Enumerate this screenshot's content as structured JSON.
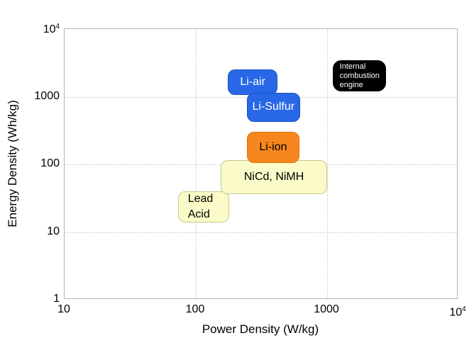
{
  "chart_data": {
    "type": "scatter",
    "subtype": "ragone-region-boxes",
    "title": "",
    "x_axis": {
      "label": "Power Density (W/kg)",
      "scale": "log",
      "range": [
        10,
        10000
      ],
      "ticks": [
        {
          "value": 10,
          "base": "10",
          "exp": ""
        },
        {
          "value": 100,
          "base": "100",
          "exp": ""
        },
        {
          "value": 1000,
          "base": "1000",
          "exp": ""
        },
        {
          "value": 10000,
          "base": "10",
          "exp": "4"
        }
      ]
    },
    "y_axis": {
      "label": "Energy Density (Wh/kg)",
      "scale": "log",
      "range": [
        1,
        10000
      ],
      "ticks": [
        {
          "value": 1,
          "base": "1",
          "exp": ""
        },
        {
          "value": 10,
          "base": "10",
          "exp": ""
        },
        {
          "value": 100,
          "base": "100",
          "exp": ""
        },
        {
          "value": 1000,
          "base": "1000",
          "exp": ""
        },
        {
          "value": 10000,
          "base": "10",
          "exp": "4"
        }
      ]
    },
    "grid": {
      "x_lines": [
        100,
        1000
      ],
      "y_lines": [
        10,
        100,
        1000
      ],
      "style": "dotted",
      "color": "#c9c9c9"
    },
    "regions": [
      {
        "name": "Lead Acid",
        "label_lines": [
          "Lead",
          "Acid"
        ],
        "x_range": [
          73,
          180
        ],
        "y_range": [
          14,
          40
        ],
        "fill": "#fbfbc9",
        "border": "#c6c68e",
        "text_color": "#000000",
        "text_align": "left",
        "font_size": 16,
        "line_height": 22,
        "pad_left": 13,
        "radius": 10,
        "z": 1
      },
      {
        "name": "NiCd, NiMH",
        "label_lines": [
          "NiCd, NiMH"
        ],
        "x_range": [
          155,
          1000
        ],
        "y_range": [
          36,
          115
        ],
        "fill": "#fbfbc9",
        "border": "#c6c68e",
        "text_color": "#000000",
        "text_align": "center",
        "font_size": 16,
        "line_height": 20,
        "pad_left": 0,
        "radius": 10,
        "z": 2
      },
      {
        "name": "Li-ion",
        "label_lines": [
          "Li-ion"
        ],
        "x_range": [
          245,
          615
        ],
        "y_range": [
          105,
          305
        ],
        "fill": "#f6861d",
        "border": "#df7110",
        "text_color": "#000000",
        "text_align": "center",
        "font_size": 16,
        "line_height": 20,
        "pad_left": 0,
        "radius": 10,
        "z": 3
      },
      {
        "name": "Li-air",
        "label_lines": [
          "Li-air"
        ],
        "x_range": [
          175,
          420
        ],
        "y_range": [
          1050,
          2500
        ],
        "fill": "#2868e6",
        "border": "#1d53c0",
        "text_color": "#ffffff",
        "text_align": "center",
        "font_size": 16,
        "line_height": 20,
        "pad_left": 0,
        "radius": 10,
        "z": 3
      },
      {
        "name": "Li-Sulfur",
        "label_lines": [
          "Li-Sulfur"
        ],
        "x_range": [
          245,
          620
        ],
        "y_range": [
          430,
          1150
        ],
        "fill": "#2868e6",
        "border": "#1d53c0",
        "text_color": "#ffffff",
        "text_align": "center",
        "font_size": 16,
        "line_height": 20,
        "pad_left": 0,
        "radius": 10,
        "z": 4
      },
      {
        "name": "Internal combustion engine",
        "label_lines": [
          "Internal",
          "combustion",
          "engine"
        ],
        "x_range": [
          1100,
          2800
        ],
        "y_range": [
          1200,
          3450
        ],
        "fill": "#000000",
        "border": "#000000",
        "text_color": "#ffffff",
        "text_align": "left",
        "font_size": 11,
        "line_height": 13,
        "pad_left": 9,
        "radius": 12,
        "z": 2
      }
    ],
    "legend": null,
    "colors": {
      "plot_border": "#b5b5b5",
      "grid": "#c9c9c9",
      "background": "#ffffff",
      "tick_text": "#000000"
    }
  }
}
